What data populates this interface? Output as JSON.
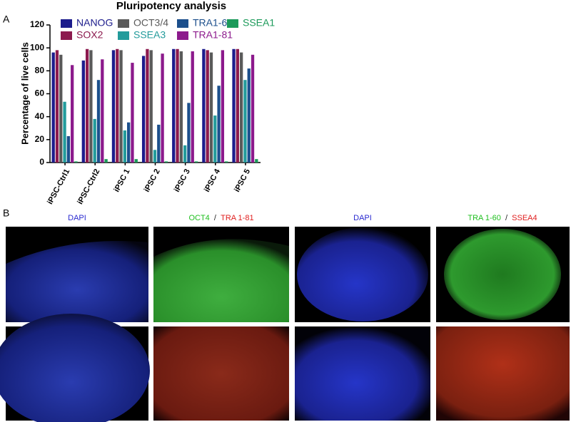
{
  "chart_data": {
    "type": "bar",
    "panel_label": "A",
    "title": "Pluripotency analysis",
    "y_label": "Percentage of live cells",
    "categories": [
      "iPSC-Ctrl1",
      "iPSC-Ctrl2",
      "iPSC 1",
      "iPSC 2",
      "iPSC 3",
      "iPSC 4",
      "iPSC 5"
    ],
    "series": [
      {
        "name": "NANOG",
        "color": "#1c1c8c",
        "values": [
          96,
          89,
          98,
          93,
          99,
          99,
          99
        ]
      },
      {
        "name": "SOX2",
        "color": "#8c1a4e",
        "values": [
          98,
          99,
          99,
          99,
          99,
          98,
          99
        ]
      },
      {
        "name": "OCT3/4",
        "color": "#5a5a5a",
        "values": [
          94,
          98,
          98,
          98,
          97,
          96,
          96
        ]
      },
      {
        "name": "SSEA3",
        "color": "#239b9b",
        "values": [
          53,
          38,
          28,
          11,
          15,
          41,
          72
        ]
      },
      {
        "name": "TRA1-60",
        "color": "#1c4f8c",
        "values": [
          23,
          72,
          35,
          33,
          52,
          67,
          82
        ]
      },
      {
        "name": "TRA1-81",
        "color": "#8c1a8c",
        "values": [
          85,
          90,
          87,
          95,
          97,
          98,
          94
        ]
      },
      {
        "name": "SSEA1",
        "color": "#1c9a5a",
        "values": [
          1,
          3,
          3,
          1,
          1,
          1,
          3
        ]
      }
    ],
    "ylim": [
      0,
      120
    ],
    "yticks": [
      0,
      20,
      40,
      60,
      80,
      100,
      120
    ],
    "grid": false
  },
  "panel_b": {
    "panel_label": "B",
    "images": [
      {
        "labels": [
          {
            "text": "DAPI",
            "color": "#2a2ad0"
          }
        ]
      },
      {
        "labels": [
          {
            "text": "OCT4",
            "color": "#1fbf1f"
          },
          {
            "text": "/",
            "color": "#222222"
          },
          {
            "text": "TRA 1-81",
            "color": "#e02020"
          }
        ]
      },
      {
        "labels": [
          {
            "text": "DAPI",
            "color": "#2a2ad0"
          }
        ]
      },
      {
        "labels": [
          {
            "text": "TRA 1-60",
            "color": "#1fbf1f"
          },
          {
            "text": "/",
            "color": "#222222"
          },
          {
            "text": "SSEA4",
            "color": "#e02020"
          }
        ]
      }
    ]
  }
}
